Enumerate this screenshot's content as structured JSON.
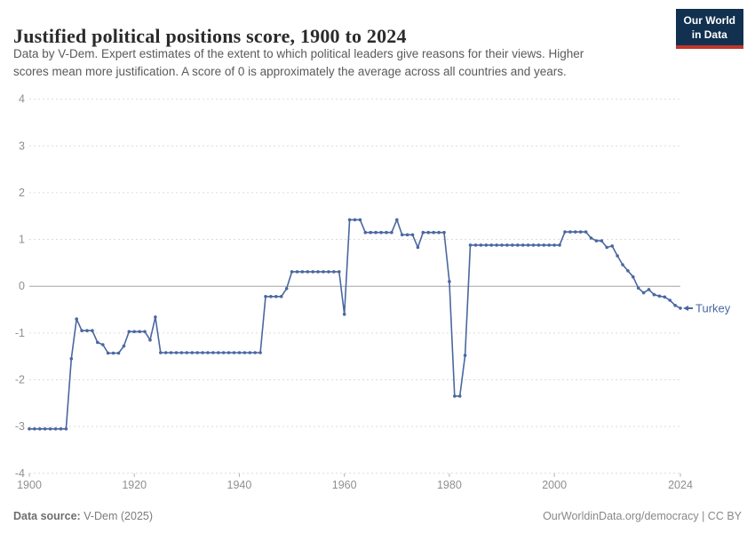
{
  "header": {
    "title": "Justified political positions score, 1900 to 2024",
    "subtitle_lines": [
      "Data by V-Dem. Expert estimates of the extent to which political leaders give reasons for their views. Higher",
      "scores mean more justification. A score of 0 is approximately the average across all countries and years."
    ],
    "logo": {
      "line1": "Our World",
      "line2": "in Data",
      "bg_color": "#12304f",
      "stripe_color": "#c0362c"
    }
  },
  "chart_data": {
    "type": "line",
    "title": "Justified political positions score, 1900 to 2024",
    "xlabel": "",
    "ylabel": "",
    "xlim": [
      1900,
      2024
    ],
    "ylim": [
      -4,
      4
    ],
    "x_ticks": [
      1900,
      1920,
      1940,
      1960,
      1980,
      2000,
      2024
    ],
    "y_ticks": [
      4,
      3,
      2,
      1,
      0,
      -1,
      -2,
      -3,
      -4
    ],
    "grid": "horizontal-dashed",
    "zero_line": true,
    "legend_position": "end-of-line-label",
    "colors": {
      "series": "#4a67a0",
      "grid": "#dcdcdc",
      "zero_line": "#a3a3a3",
      "tick_label": "#8f8f8f",
      "tick_mark": "#b3b3b3"
    },
    "series": [
      {
        "name": "Turkey",
        "end_label": "Turkey",
        "year_start": 1900,
        "year_step": 1,
        "values": [
          -3.05,
          -3.05,
          -3.05,
          -3.05,
          -3.05,
          -3.05,
          -3.05,
          -3.05,
          -1.55,
          -0.7,
          -0.95,
          -0.95,
          -0.95,
          -1.2,
          -1.25,
          -1.43,
          -1.43,
          -1.43,
          -1.28,
          -0.97,
          -0.97,
          -0.97,
          -0.97,
          -1.15,
          -0.66,
          -1.42,
          -1.42,
          -1.42,
          -1.42,
          -1.42,
          -1.42,
          -1.42,
          -1.42,
          -1.42,
          -1.42,
          -1.42,
          -1.42,
          -1.42,
          -1.42,
          -1.42,
          -1.42,
          -1.42,
          -1.42,
          -1.42,
          -1.42,
          -0.22,
          -0.22,
          -0.22,
          -0.22,
          -0.05,
          0.31,
          0.31,
          0.31,
          0.31,
          0.31,
          0.31,
          0.31,
          0.31,
          0.31,
          0.31,
          -0.6,
          1.42,
          1.42,
          1.42,
          1.15,
          1.15,
          1.15,
          1.15,
          1.15,
          1.15,
          1.42,
          1.1,
          1.1,
          1.1,
          0.83,
          1.15,
          1.15,
          1.15,
          1.15,
          1.15,
          0.1,
          -2.35,
          -2.35,
          -1.48,
          0.88,
          0.88,
          0.88,
          0.88,
          0.88,
          0.88,
          0.88,
          0.88,
          0.88,
          0.88,
          0.88,
          0.88,
          0.88,
          0.88,
          0.88,
          0.88,
          0.88,
          0.88,
          1.16,
          1.16,
          1.16,
          1.16,
          1.16,
          1.03,
          0.97,
          0.97,
          0.83,
          0.86,
          0.65,
          0.46,
          0.33,
          0.2,
          -0.04,
          -0.14,
          -0.07,
          -0.18,
          -0.21,
          -0.23,
          -0.3,
          -0.41,
          -0.47
        ]
      }
    ]
  },
  "footer": {
    "source_label": "Data source:",
    "source_value": " V-Dem (2025)",
    "credit": "OurWorldinData.org/democracy | CC BY"
  }
}
